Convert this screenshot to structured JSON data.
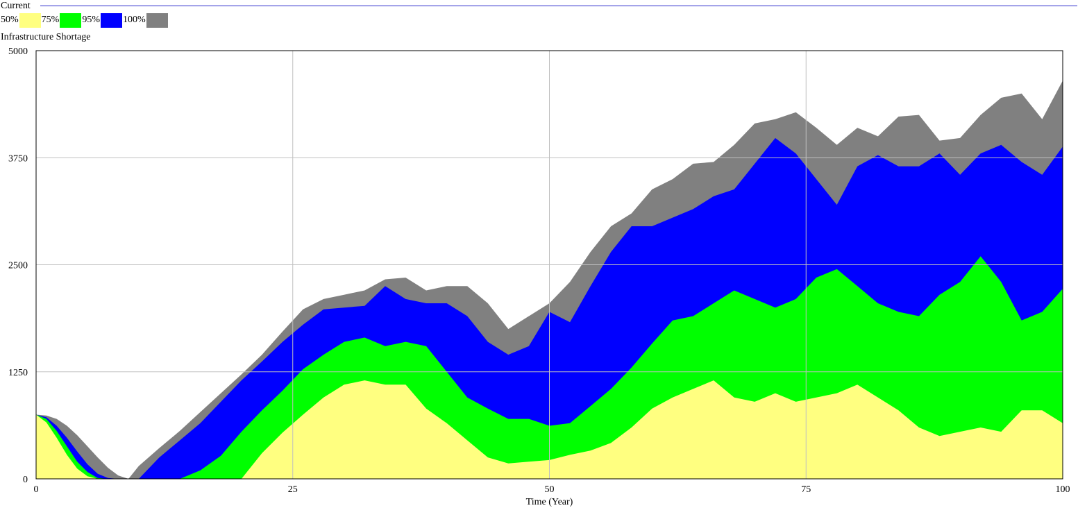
{
  "header": {
    "run_label": "Current",
    "variable_label": "Infrastructure Shortage"
  },
  "legend": [
    {
      "label": "50%",
      "color": "#ffff80"
    },
    {
      "label": "75%",
      "color": "#00ff00"
    },
    {
      "label": "95%",
      "color": "#0000ff"
    },
    {
      "label": "100%",
      "color": "#808080"
    }
  ],
  "chart_data": {
    "type": "area",
    "title": "",
    "xlabel": "Time (Year)",
    "ylabel": "Infrastructure Shortage",
    "xlim": [
      0,
      100
    ],
    "ylim": [
      0,
      5000
    ],
    "x_ticks": [
      0,
      25,
      50,
      75,
      100
    ],
    "y_ticks": [
      0,
      1250,
      2500,
      3750,
      5000
    ],
    "grid": true,
    "colors": {
      "bg": "#ffffff",
      "grid": "#c0c0c0",
      "rule": "#2a2acc"
    },
    "x": [
      0,
      1,
      2,
      3,
      4,
      5,
      6,
      7,
      8,
      9,
      10,
      12,
      14,
      16,
      18,
      20,
      22,
      24,
      26,
      28,
      30,
      32,
      34,
      36,
      38,
      40,
      42,
      44,
      46,
      48,
      50,
      52,
      54,
      56,
      58,
      60,
      62,
      64,
      66,
      68,
      70,
      72,
      74,
      76,
      78,
      80,
      82,
      84,
      86,
      88,
      90,
      92,
      94,
      96,
      98,
      100
    ],
    "series": [
      {
        "name": "",
        "band": "100% upper",
        "color": "#808080",
        "values": [
          750,
          740,
          700,
          620,
          510,
          380,
          250,
          130,
          40,
          0,
          150,
          360,
          560,
          780,
          1000,
          1220,
          1450,
          1720,
          1980,
          2100,
          2150,
          2200,
          2330,
          2350,
          2200,
          2250,
          2250,
          2050,
          1750,
          1900,
          2050,
          2300,
          2650,
          2950,
          3100,
          3380,
          3500,
          3680,
          3700,
          3900,
          4150,
          4200,
          4280,
          4100,
          3900,
          4100,
          4000,
          4230,
          4250,
          3950,
          3980,
          4250,
          4450,
          4500,
          4200,
          4650
        ]
      },
      {
        "name": "",
        "band": "95% upper",
        "color": "#0000ff",
        "values": [
          750,
          720,
          620,
          480,
          320,
          170,
          60,
          10,
          0,
          0,
          0,
          250,
          450,
          650,
          900,
          1150,
          1370,
          1600,
          1800,
          1980,
          2000,
          2020,
          2250,
          2100,
          2050,
          2050,
          1900,
          1600,
          1450,
          1550,
          1950,
          1830,
          2250,
          2650,
          2950,
          2950,
          3050,
          3150,
          3300,
          3380,
          3680,
          3980,
          3800,
          3500,
          3200,
          3650,
          3780,
          3650,
          3650,
          3800,
          3550,
          3800,
          3900,
          3700,
          3550,
          3880
        ]
      },
      {
        "name": "",
        "band": "75% upper",
        "color": "#00ff00",
        "values": [
          750,
          700,
          560,
          380,
          200,
          80,
          10,
          0,
          0,
          0,
          0,
          0,
          0,
          100,
          270,
          550,
          800,
          1030,
          1280,
          1450,
          1600,
          1650,
          1550,
          1600,
          1550,
          1250,
          950,
          820,
          700,
          700,
          620,
          650,
          850,
          1050,
          1300,
          1580,
          1850,
          1900,
          2050,
          2200,
          2100,
          2000,
          2100,
          2350,
          2450,
          2250,
          2050,
          1950,
          1900,
          2150,
          2300,
          2600,
          2300,
          1850,
          1950,
          2220
        ]
      },
      {
        "name": "",
        "band": "50% upper",
        "color": "#ffff80",
        "values": [
          750,
          660,
          480,
          280,
          120,
          30,
          0,
          0,
          0,
          0,
          0,
          0,
          0,
          0,
          0,
          0,
          300,
          540,
          750,
          950,
          1100,
          1150,
          1100,
          1100,
          820,
          650,
          450,
          250,
          180,
          200,
          220,
          280,
          330,
          420,
          600,
          820,
          950,
          1050,
          1150,
          950,
          900,
          1000,
          900,
          950,
          1000,
          1100,
          950,
          800,
          600,
          500,
          550,
          600,
          550,
          800,
          800,
          650
        ]
      }
    ]
  }
}
